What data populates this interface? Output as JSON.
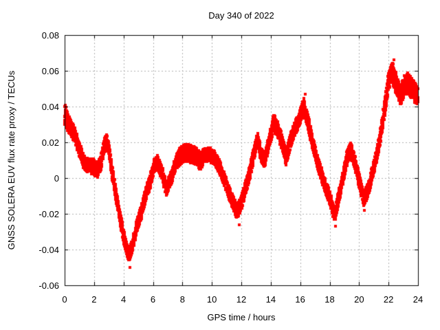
{
  "colors": {
    "background": "#ffffff",
    "text": "#000000",
    "border": "#000000",
    "grid": "#b0b0b0",
    "data": "#ff0000"
  },
  "chart_data": {
    "type": "scatter",
    "title": "Day 340 of 2022",
    "xlabel": "GPS time / hours",
    "ylabel": "GNSS SOLERA EUV flux rate proxy / TECUs",
    "xlim": [
      0,
      24
    ],
    "ylim": [
      -0.06,
      0.08
    ],
    "grid": true,
    "legend": "none",
    "x_ticks": {
      "values": [
        0,
        2,
        4,
        6,
        8,
        10,
        12,
        14,
        16,
        18,
        20,
        22,
        24
      ],
      "labels": [
        "0",
        "2",
        "4",
        "6",
        "8",
        "10",
        "12",
        "14",
        "16",
        "18",
        "20",
        "22",
        "24"
      ]
    },
    "y_ticks": {
      "values": [
        0.08,
        0.06,
        0.04,
        0.02,
        0,
        -0.02,
        -0.04,
        -0.06
      ],
      "labels": [
        "0.08",
        "0.06",
        "0.04",
        "0.02",
        "0",
        "-0.02",
        "-0.04",
        "-0.06"
      ]
    },
    "series": [
      {
        "name": "EUV flux rate proxy",
        "marker": "filled-square",
        "marker_size_px": 4,
        "color": "#ff0000",
        "sample_step_hours": 0.004,
        "noise_seed": 20221206,
        "band_keypoints": [
          [
            0.0,
            0.036,
            0.006
          ],
          [
            0.3,
            0.03,
            0.005
          ],
          [
            0.7,
            0.024,
            0.004
          ],
          [
            1.0,
            0.016,
            0.004
          ],
          [
            1.3,
            0.009,
            0.004
          ],
          [
            1.6,
            0.007,
            0.004
          ],
          [
            1.9,
            0.007,
            0.005
          ],
          [
            2.2,
            0.004,
            0.004
          ],
          [
            2.45,
            0.008,
            0.004
          ],
          [
            2.7,
            0.018,
            0.004
          ],
          [
            2.85,
            0.021,
            0.004
          ],
          [
            3.0,
            0.016,
            0.004
          ],
          [
            3.2,
            0.005,
            0.004
          ],
          [
            3.5,
            -0.01,
            0.004
          ],
          [
            3.8,
            -0.024,
            0.004
          ],
          [
            4.1,
            -0.036,
            0.004
          ],
          [
            4.35,
            -0.043,
            0.004
          ],
          [
            4.6,
            -0.038,
            0.004
          ],
          [
            4.9,
            -0.027,
            0.004
          ],
          [
            5.2,
            -0.019,
            0.004
          ],
          [
            5.5,
            -0.009,
            0.004
          ],
          [
            5.8,
            -0.002,
            0.004
          ],
          [
            6.1,
            0.007,
            0.004
          ],
          [
            6.3,
            0.009,
            0.004
          ],
          [
            6.6,
            0.003,
            0.004
          ],
          [
            6.9,
            -0.006,
            0.004
          ],
          [
            7.2,
            -0.001,
            0.004
          ],
          [
            7.5,
            0.007,
            0.004
          ],
          [
            7.8,
            0.012,
            0.005
          ],
          [
            8.1,
            0.014,
            0.005
          ],
          [
            8.4,
            0.014,
            0.005
          ],
          [
            8.7,
            0.013,
            0.005
          ],
          [
            9.0,
            0.012,
            0.005
          ],
          [
            9.2,
            0.009,
            0.005
          ],
          [
            9.5,
            0.013,
            0.004
          ],
          [
            9.9,
            0.013,
            0.004
          ],
          [
            10.2,
            0.011,
            0.004
          ],
          [
            10.5,
            0.007,
            0.004
          ],
          [
            10.8,
            0.0,
            0.004
          ],
          [
            11.1,
            -0.007,
            0.004
          ],
          [
            11.4,
            -0.013,
            0.004
          ],
          [
            11.7,
            -0.019,
            0.004
          ],
          [
            12.0,
            -0.014,
            0.004
          ],
          [
            12.3,
            -0.005,
            0.004
          ],
          [
            12.6,
            0.004,
            0.004
          ],
          [
            12.9,
            0.015,
            0.004
          ],
          [
            13.1,
            0.022,
            0.004
          ],
          [
            13.35,
            0.013,
            0.004
          ],
          [
            13.6,
            0.01,
            0.004
          ],
          [
            13.9,
            0.021,
            0.004
          ],
          [
            14.2,
            0.031,
            0.005
          ],
          [
            14.5,
            0.027,
            0.005
          ],
          [
            14.8,
            0.019,
            0.004
          ],
          [
            15.05,
            0.011,
            0.004
          ],
          [
            15.3,
            0.02,
            0.004
          ],
          [
            15.6,
            0.027,
            0.004
          ],
          [
            15.9,
            0.032,
            0.004
          ],
          [
            16.25,
            0.04,
            0.005
          ],
          [
            16.5,
            0.033,
            0.004
          ],
          [
            16.8,
            0.021,
            0.004
          ],
          [
            17.1,
            0.011,
            0.004
          ],
          [
            17.4,
            0.003,
            0.004
          ],
          [
            17.7,
            -0.005,
            0.004
          ],
          [
            18.0,
            -0.011,
            0.004
          ],
          [
            18.35,
            -0.021,
            0.004
          ],
          [
            18.6,
            -0.011,
            0.004
          ],
          [
            18.9,
            0.0,
            0.004
          ],
          [
            19.2,
            0.012,
            0.004
          ],
          [
            19.45,
            0.016,
            0.004
          ],
          [
            19.7,
            0.009,
            0.004
          ],
          [
            20.0,
            -0.001,
            0.004
          ],
          [
            20.3,
            -0.012,
            0.004
          ],
          [
            20.6,
            -0.007,
            0.004
          ],
          [
            20.9,
            0.003,
            0.004
          ],
          [
            21.2,
            0.013,
            0.004
          ],
          [
            21.5,
            0.026,
            0.004
          ],
          [
            21.8,
            0.043,
            0.005
          ],
          [
            22.0,
            0.054,
            0.005
          ],
          [
            22.25,
            0.059,
            0.006
          ],
          [
            22.5,
            0.053,
            0.006
          ],
          [
            22.8,
            0.046,
            0.005
          ],
          [
            23.1,
            0.052,
            0.006
          ],
          [
            23.35,
            0.053,
            0.006
          ],
          [
            23.6,
            0.05,
            0.006
          ],
          [
            23.85,
            0.047,
            0.006
          ],
          [
            24.0,
            0.046,
            0.005
          ]
        ],
        "outliers": [
          [
            4.42,
            -0.05
          ],
          [
            11.85,
            -0.026
          ],
          [
            16.32,
            0.047
          ],
          [
            18.42,
            -0.027
          ],
          [
            20.35,
            -0.018
          ],
          [
            22.35,
            0.066
          ]
        ]
      }
    ]
  }
}
